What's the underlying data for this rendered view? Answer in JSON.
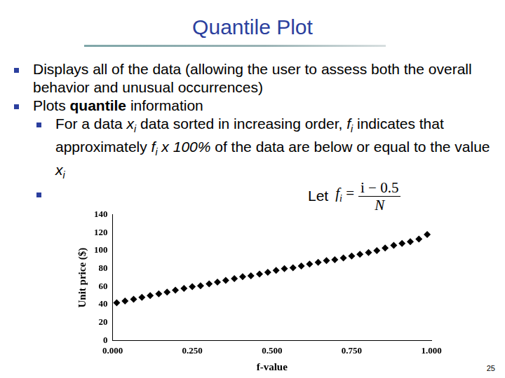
{
  "slide": {
    "title": "Quantile Plot",
    "page": "25",
    "bullets": [
      {
        "level": 1,
        "runs": [
          {
            "text": "Displays all of the data (allowing the user to assess both the overall behavior and unusual occurrences)"
          }
        ]
      },
      {
        "level": 1,
        "runs": [
          {
            "text": "Plots "
          },
          {
            "text": "quantile",
            "style": "bold"
          },
          {
            "text": " information"
          }
        ]
      },
      {
        "level": 2,
        "runs": [
          {
            "text": "For a data "
          },
          {
            "text": "x",
            "style": "italic"
          },
          {
            "text": "i",
            "style": "sub"
          },
          {
            "text": " data sorted in increasing order, "
          },
          {
            "text": "f",
            "style": "italic"
          },
          {
            "text": "i",
            "style": "sub"
          },
          {
            "text": " indicates that approximately "
          },
          {
            "text": "f",
            "style": "italic"
          },
          {
            "text": "i",
            "style": "sub"
          },
          {
            "text": " x 100%",
            "style": "italic"
          },
          {
            "text": " of the data are below or equal to the value "
          },
          {
            "text": "x",
            "style": "italic"
          },
          {
            "text": "i",
            "style": "sub"
          }
        ]
      },
      {
        "level": 2,
        "runs": [
          {
            "text": "Let"
          }
        ],
        "formula": {
          "lhs": "f",
          "lhs_sub": "i",
          "equals": "=",
          "numerator": "i − 0.5",
          "denominator": "N"
        }
      }
    ]
  },
  "chart_data": {
    "type": "scatter",
    "x_label": "f-value",
    "y_label": "Unit price ($)",
    "x": [
      0.013,
      0.039,
      0.066,
      0.092,
      0.118,
      0.145,
      0.171,
      0.197,
      0.224,
      0.25,
      0.276,
      0.303,
      0.329,
      0.355,
      0.382,
      0.408,
      0.434,
      0.461,
      0.487,
      0.513,
      0.539,
      0.566,
      0.592,
      0.618,
      0.645,
      0.671,
      0.697,
      0.724,
      0.75,
      0.776,
      0.803,
      0.829,
      0.855,
      0.882,
      0.908,
      0.934,
      0.961,
      0.987
    ],
    "values": [
      42,
      44,
      46,
      48,
      50,
      52,
      54,
      56,
      58,
      60,
      61,
      63,
      65,
      67,
      69,
      71,
      72,
      74,
      76,
      78,
      80,
      81,
      83,
      85,
      87,
      89,
      90,
      92,
      94,
      96,
      98,
      100,
      103,
      106,
      108,
      110,
      113,
      118
    ],
    "color": "#000000",
    "marker": "diamond",
    "xlim": [
      0,
      1
    ],
    "xticks": [
      {
        "value": 0,
        "label": "0.000"
      },
      {
        "value": 0.25,
        "label": "0.250"
      },
      {
        "value": 0.5,
        "label": "0.500"
      },
      {
        "value": 0.75,
        "label": "0.750"
      },
      {
        "value": 1,
        "label": "1.000"
      }
    ],
    "ylim": [
      0,
      140
    ],
    "yticks": [
      0,
      20,
      40,
      60,
      80,
      100,
      120,
      140
    ],
    "grid": false
  }
}
